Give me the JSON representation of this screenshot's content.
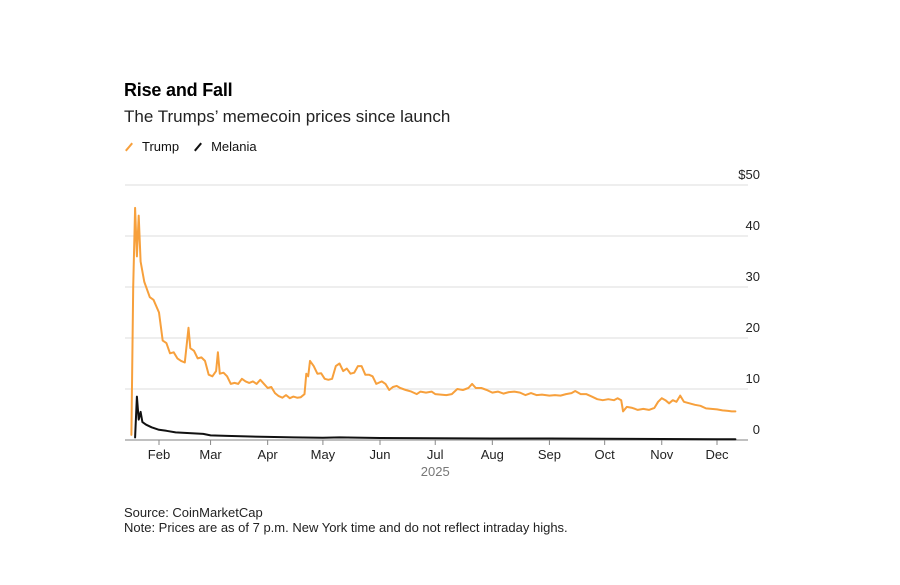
{
  "header": {
    "title": "Rise and Fall",
    "subtitle": "The Trumps’ memecoin prices since launch"
  },
  "legend": [
    {
      "label": "Trump",
      "color": "#f7a03c"
    },
    {
      "label": "Melania",
      "color": "#111111"
    }
  ],
  "footer": {
    "source": "Source: CoinMarketCap",
    "note": "Note: Prices are as of 7 p.m. New York time and do not reflect intraday highs."
  },
  "chart_data": {
    "type": "line",
    "title": "Rise and Fall",
    "subtitle": "The Trumps’ memecoin prices since launch",
    "xlabel": "2025",
    "ylabel": "",
    "x_axis": {
      "type": "date",
      "range": [
        "2025-01-12",
        "2025-12-29"
      ],
      "tick_labels": [
        "Feb",
        "Mar",
        "Apr",
        "May",
        "Jun",
        "Jul",
        "Aug",
        "Sep",
        "Oct",
        "Nov",
        "Dec"
      ],
      "tick_dates": [
        "2025-02-01",
        "2025-03-01",
        "2025-04-01",
        "2025-05-01",
        "2025-06-01",
        "2025-07-01",
        "2025-08-01",
        "2025-09-01",
        "2025-10-01",
        "2025-11-01",
        "2025-12-01"
      ],
      "year_label": "2025"
    },
    "y_axis": {
      "range": [
        0,
        50
      ],
      "ticks": [
        0,
        10,
        20,
        30,
        40,
        50
      ],
      "tick_labels": [
        "0",
        "10",
        "20",
        "30",
        "40",
        "$50"
      ],
      "position": "right",
      "grid": true
    },
    "legend_position": "top-left",
    "series": [
      {
        "name": "Trump",
        "color": "#f7a03c",
        "points": [
          [
            "2025-01-17",
            1
          ],
          [
            "2025-01-18",
            30
          ],
          [
            "2025-01-19",
            45.5
          ],
          [
            "2025-01-20",
            36
          ],
          [
            "2025-01-21",
            44
          ],
          [
            "2025-01-22",
            35
          ],
          [
            "2025-01-24",
            31
          ],
          [
            "2025-01-27",
            28
          ],
          [
            "2025-01-29",
            27.5
          ],
          [
            "2025-02-01",
            25
          ],
          [
            "2025-02-03",
            19.5
          ],
          [
            "2025-02-05",
            19
          ],
          [
            "2025-02-07",
            17
          ],
          [
            "2025-02-09",
            17.2
          ],
          [
            "2025-02-11",
            16
          ],
          [
            "2025-02-13",
            15.5
          ],
          [
            "2025-02-15",
            15.2
          ],
          [
            "2025-02-17",
            22
          ],
          [
            "2025-02-18",
            18
          ],
          [
            "2025-02-20",
            17.5
          ],
          [
            "2025-02-22",
            16
          ],
          [
            "2025-02-24",
            16.2
          ],
          [
            "2025-02-26",
            15.5
          ],
          [
            "2025-02-28",
            12.8
          ],
          [
            "2025-03-02",
            12.5
          ],
          [
            "2025-03-04",
            13.5
          ],
          [
            "2025-03-05",
            17.2
          ],
          [
            "2025-03-06",
            13
          ],
          [
            "2025-03-08",
            13.2
          ],
          [
            "2025-03-10",
            12.5
          ],
          [
            "2025-03-12",
            11
          ],
          [
            "2025-03-14",
            11.2
          ],
          [
            "2025-03-16",
            11
          ],
          [
            "2025-03-18",
            12
          ],
          [
            "2025-03-20",
            11.5
          ],
          [
            "2025-03-22",
            11.2
          ],
          [
            "2025-03-24",
            11.5
          ],
          [
            "2025-03-26",
            11
          ],
          [
            "2025-03-28",
            11.8
          ],
          [
            "2025-03-30",
            11
          ],
          [
            "2025-04-01",
            10.2
          ],
          [
            "2025-04-03",
            10.4
          ],
          [
            "2025-04-05",
            9.2
          ],
          [
            "2025-04-07",
            8.6
          ],
          [
            "2025-04-09",
            8.3
          ],
          [
            "2025-04-11",
            8.8
          ],
          [
            "2025-04-13",
            8.2
          ],
          [
            "2025-04-15",
            8.5
          ],
          [
            "2025-04-17",
            8.3
          ],
          [
            "2025-04-19",
            8.4
          ],
          [
            "2025-04-21",
            9
          ],
          [
            "2025-04-22",
            13
          ],
          [
            "2025-04-23",
            12.5
          ],
          [
            "2025-04-24",
            15.5
          ],
          [
            "2025-04-26",
            14.5
          ],
          [
            "2025-04-28",
            13
          ],
          [
            "2025-04-30",
            13.1
          ],
          [
            "2025-05-02",
            12
          ],
          [
            "2025-05-04",
            11.8
          ],
          [
            "2025-05-06",
            12
          ],
          [
            "2025-05-08",
            14.5
          ],
          [
            "2025-05-10",
            15
          ],
          [
            "2025-05-12",
            13.5
          ],
          [
            "2025-05-14",
            14
          ],
          [
            "2025-05-16",
            13
          ],
          [
            "2025-05-18",
            13.2
          ],
          [
            "2025-05-20",
            14.5
          ],
          [
            "2025-05-22",
            14.5
          ],
          [
            "2025-05-24",
            12.8
          ],
          [
            "2025-05-26",
            12.8
          ],
          [
            "2025-05-28",
            12.5
          ],
          [
            "2025-05-30",
            11
          ],
          [
            "2025-06-02",
            11.5
          ],
          [
            "2025-06-04",
            11
          ],
          [
            "2025-06-06",
            9.8
          ],
          [
            "2025-06-08",
            10.4
          ],
          [
            "2025-06-10",
            10.6
          ],
          [
            "2025-06-12",
            10.2
          ],
          [
            "2025-06-15",
            9.8
          ],
          [
            "2025-06-18",
            9.5
          ],
          [
            "2025-06-21",
            9
          ],
          [
            "2025-06-23",
            9.5
          ],
          [
            "2025-06-26",
            9.3
          ],
          [
            "2025-06-29",
            9.5
          ],
          [
            "2025-07-01",
            9
          ],
          [
            "2025-07-04",
            8.9
          ],
          [
            "2025-07-07",
            8.8
          ],
          [
            "2025-07-10",
            9
          ],
          [
            "2025-07-13",
            10
          ],
          [
            "2025-07-16",
            9.8
          ],
          [
            "2025-07-19",
            10.2
          ],
          [
            "2025-07-21",
            11
          ],
          [
            "2025-07-23",
            10.2
          ],
          [
            "2025-07-26",
            10.2
          ],
          [
            "2025-07-29",
            9.8
          ],
          [
            "2025-08-01",
            9.3
          ],
          [
            "2025-08-04",
            9.5
          ],
          [
            "2025-08-07",
            9.1
          ],
          [
            "2025-08-10",
            9.4
          ],
          [
            "2025-08-13",
            9.5
          ],
          [
            "2025-08-16",
            9.3
          ],
          [
            "2025-08-19",
            8.8
          ],
          [
            "2025-08-22",
            9.2
          ],
          [
            "2025-08-25",
            8.8
          ],
          [
            "2025-08-28",
            8.9
          ],
          [
            "2025-09-01",
            8.7
          ],
          [
            "2025-09-04",
            8.8
          ],
          [
            "2025-09-07",
            8.7
          ],
          [
            "2025-09-10",
            9
          ],
          [
            "2025-09-13",
            9.2
          ],
          [
            "2025-09-15",
            9.6
          ],
          [
            "2025-09-18",
            9
          ],
          [
            "2025-09-21",
            9
          ],
          [
            "2025-09-24",
            8.5
          ],
          [
            "2025-09-27",
            8
          ],
          [
            "2025-09-30",
            7.8
          ],
          [
            "2025-10-03",
            8
          ],
          [
            "2025-10-06",
            7.8
          ],
          [
            "2025-10-08",
            8.2
          ],
          [
            "2025-10-10",
            7.8
          ],
          [
            "2025-10-11",
            5.6
          ],
          [
            "2025-10-13",
            6.5
          ],
          [
            "2025-10-16",
            6.3
          ],
          [
            "2025-10-19",
            5.9
          ],
          [
            "2025-10-22",
            6.1
          ],
          [
            "2025-10-25",
            5.9
          ],
          [
            "2025-10-28",
            6.3
          ],
          [
            "2025-10-30",
            7.5
          ],
          [
            "2025-11-01",
            8.2
          ],
          [
            "2025-11-03",
            7.8
          ],
          [
            "2025-11-05",
            7.2
          ],
          [
            "2025-11-07",
            7.8
          ],
          [
            "2025-11-09",
            7.5
          ],
          [
            "2025-11-11",
            8.7
          ],
          [
            "2025-11-13",
            7.5
          ],
          [
            "2025-11-16",
            7.2
          ],
          [
            "2025-11-19",
            6.9
          ],
          [
            "2025-11-22",
            6.7
          ],
          [
            "2025-11-25",
            6.2
          ],
          [
            "2025-11-28",
            6.1
          ],
          [
            "2025-12-01",
            6
          ],
          [
            "2025-12-04",
            5.8
          ],
          [
            "2025-12-07",
            5.7
          ],
          [
            "2025-12-09",
            5.6
          ],
          [
            "2025-12-11",
            5.6
          ]
        ]
      },
      {
        "name": "Melania",
        "color": "#111111",
        "points": [
          [
            "2025-01-19",
            0.5
          ],
          [
            "2025-01-20",
            8.5
          ],
          [
            "2025-01-21",
            4
          ],
          [
            "2025-01-22",
            5.5
          ],
          [
            "2025-01-23",
            3.5
          ],
          [
            "2025-01-25",
            3
          ],
          [
            "2025-01-28",
            2.5
          ],
          [
            "2025-02-01",
            2
          ],
          [
            "2025-02-05",
            1.8
          ],
          [
            "2025-02-10",
            1.5
          ],
          [
            "2025-02-15",
            1.4
          ],
          [
            "2025-02-20",
            1.3
          ],
          [
            "2025-02-25",
            1.2
          ],
          [
            "2025-03-01",
            0.9
          ],
          [
            "2025-03-10",
            0.8
          ],
          [
            "2025-03-20",
            0.7
          ],
          [
            "2025-04-01",
            0.6
          ],
          [
            "2025-04-15",
            0.5
          ],
          [
            "2025-05-01",
            0.45
          ],
          [
            "2025-05-10",
            0.5
          ],
          [
            "2025-06-01",
            0.4
          ],
          [
            "2025-07-01",
            0.35
          ],
          [
            "2025-08-01",
            0.3
          ],
          [
            "2025-09-01",
            0.3
          ],
          [
            "2025-10-01",
            0.25
          ],
          [
            "2025-11-01",
            0.2
          ],
          [
            "2025-12-01",
            0.15
          ],
          [
            "2025-12-11",
            0.15
          ]
        ]
      }
    ]
  }
}
